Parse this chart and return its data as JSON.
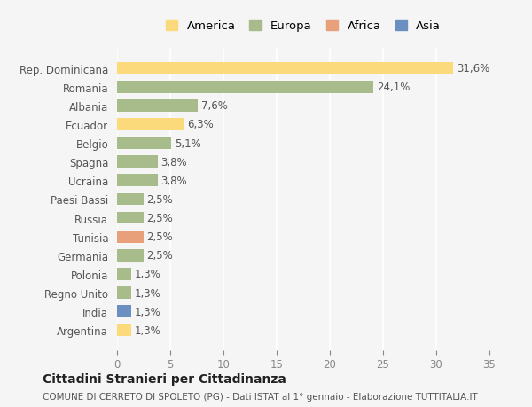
{
  "countries": [
    "Rep. Dominicana",
    "Romania",
    "Albania",
    "Ecuador",
    "Belgio",
    "Spagna",
    "Ucraina",
    "Paesi Bassi",
    "Russia",
    "Tunisia",
    "Germania",
    "Polonia",
    "Regno Unito",
    "India",
    "Argentina"
  ],
  "values": [
    31.6,
    24.1,
    7.6,
    6.3,
    5.1,
    3.8,
    3.8,
    2.5,
    2.5,
    2.5,
    2.5,
    1.3,
    1.3,
    1.3,
    1.3
  ],
  "labels": [
    "31,6%",
    "24,1%",
    "7,6%",
    "6,3%",
    "5,1%",
    "3,8%",
    "3,8%",
    "2,5%",
    "2,5%",
    "2,5%",
    "2,5%",
    "1,3%",
    "1,3%",
    "1,3%",
    "1,3%"
  ],
  "colors": [
    "#FADA7A",
    "#A8BB8A",
    "#A8BB8A",
    "#FADA7A",
    "#A8BB8A",
    "#A8BB8A",
    "#A8BB8A",
    "#A8BB8A",
    "#A8BB8A",
    "#E8A07A",
    "#A8BB8A",
    "#A8BB8A",
    "#A8BB8A",
    "#6B8FC0",
    "#FADA7A"
  ],
  "legend": [
    {
      "label": "America",
      "color": "#FADA7A"
    },
    {
      "label": "Europa",
      "color": "#A8BB8A"
    },
    {
      "label": "Africa",
      "color": "#E8A07A"
    },
    {
      "label": "Asia",
      "color": "#6B8FC0"
    }
  ],
  "xlim": [
    0,
    35
  ],
  "xticks": [
    0,
    5,
    10,
    15,
    20,
    25,
    30,
    35
  ],
  "title": "Cittadini Stranieri per Cittadinanza",
  "subtitle": "COMUNE DI CERRETO DI SPOLETO (PG) - Dati ISTAT al 1° gennaio - Elaborazione TUTTITALIA.IT",
  "background_color": "#f5f5f5",
  "bar_height": 0.65,
  "label_fontsize": 8.5,
  "tick_fontsize": 8.5
}
